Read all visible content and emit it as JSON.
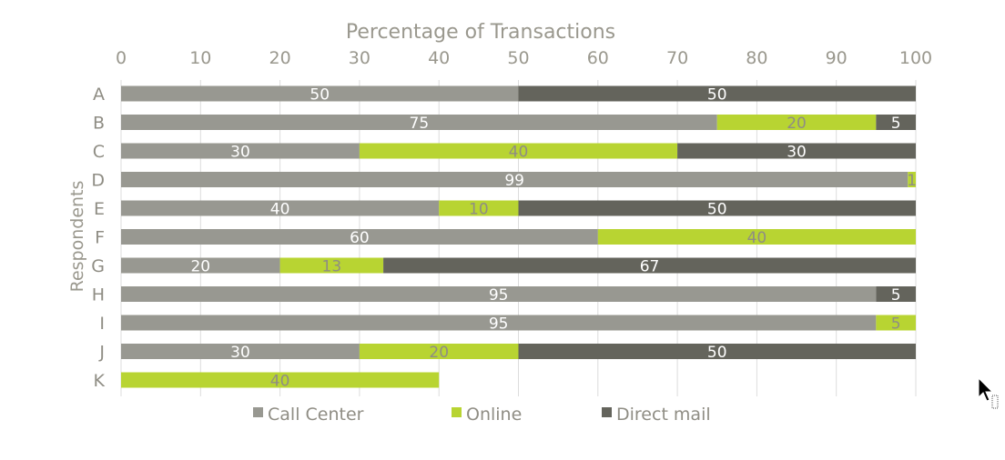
{
  "chart_data": {
    "type": "bar",
    "orientation": "horizontal",
    "stacked": true,
    "title": "",
    "xlabel": "Percentage of Transactions",
    "ylabel": "Respondents",
    "xlim": [
      0,
      100
    ],
    "xticks": [
      0,
      10,
      20,
      30,
      40,
      50,
      60,
      70,
      80,
      90,
      100
    ],
    "categories": [
      "A",
      "B",
      "C",
      "D",
      "E",
      "F",
      "G",
      "H",
      "I",
      "J",
      "K"
    ],
    "series": [
      {
        "name": "Call Center",
        "color": "#989891",
        "label_color": "#ffffff",
        "values": [
          50,
          75,
          30,
          99,
          40,
          60,
          20,
          95,
          95,
          30,
          null
        ]
      },
      {
        "name": "Online",
        "color": "#b8d432",
        "label_color": "#8f8d84",
        "values": [
          null,
          20,
          40,
          1,
          10,
          40,
          13,
          null,
          5,
          20,
          40
        ]
      },
      {
        "name": "Direct mail",
        "color": "#64645c",
        "label_color": "#ffffff",
        "values": [
          50,
          5,
          30,
          null,
          50,
          null,
          67,
          5,
          null,
          50,
          null
        ]
      }
    ],
    "grid": true,
    "axis_position": "top",
    "legend_position": "bottom"
  }
}
